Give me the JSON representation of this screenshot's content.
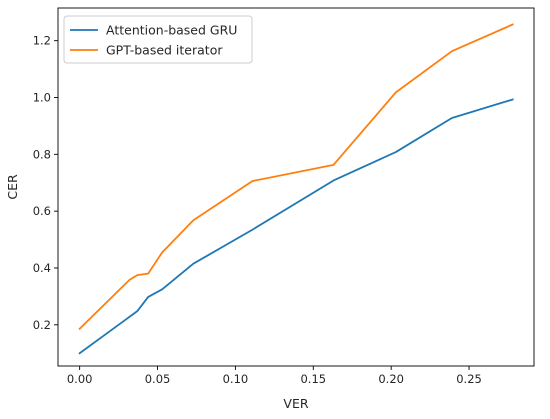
{
  "chart_data": {
    "type": "line",
    "title": "",
    "xlabel": "VER",
    "ylabel": "CER",
    "xlim": [
      -0.0139,
      0.2917
    ],
    "ylim": [
      0.055,
      1.315
    ],
    "xticks": [
      0.0,
      0.05,
      0.1,
      0.15,
      0.2,
      0.25
    ],
    "xtick_labels": [
      "0.00",
      "0.05",
      "0.10",
      "0.15",
      "0.20",
      "0.25"
    ],
    "yticks": [
      0.2,
      0.4,
      0.6,
      0.8,
      1.0,
      1.2
    ],
    "ytick_labels": [
      "0.2",
      "0.4",
      "0.6",
      "0.8",
      "1.0",
      "1.2"
    ],
    "grid": false,
    "legend_position": "top-left",
    "series": [
      {
        "name": "Attention-based GRU",
        "color": "#1f77b4",
        "x": [
          0.0,
          0.037,
          0.044,
          0.053,
          0.073,
          0.111,
          0.163,
          0.203,
          0.239,
          0.278
        ],
        "y": [
          0.1,
          0.248,
          0.298,
          0.325,
          0.415,
          0.535,
          0.708,
          0.808,
          0.928,
          0.993
        ]
      },
      {
        "name": "GPT-based iterator",
        "color": "#ff7f0e",
        "x": [
          0.0,
          0.032,
          0.037,
          0.044,
          0.053,
          0.073,
          0.111,
          0.163,
          0.203,
          0.239,
          0.278
        ],
        "y": [
          0.186,
          0.358,
          0.375,
          0.38,
          0.455,
          0.568,
          0.706,
          0.763,
          1.018,
          1.163,
          1.257
        ]
      }
    ]
  }
}
